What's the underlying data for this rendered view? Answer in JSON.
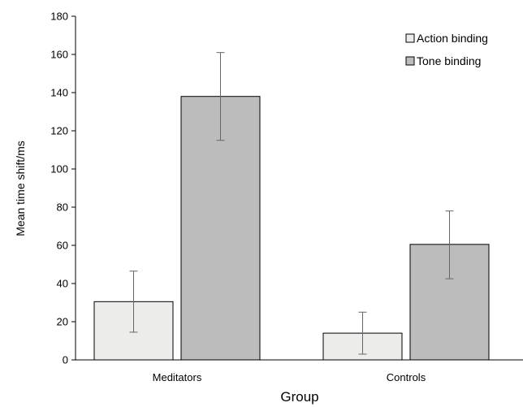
{
  "chart_data": {
    "type": "bar",
    "categories": [
      "Meditators",
      "Controls"
    ],
    "series": [
      {
        "name": "Action binding",
        "values": [
          30.5,
          14
        ],
        "error_low": [
          14.5,
          3
        ],
        "error_high": [
          46.5,
          25
        ],
        "color": "#ececea"
      },
      {
        "name": "Tone binding",
        "values": [
          138,
          60.5
        ],
        "error_low": [
          115,
          42.5
        ],
        "error_high": [
          161,
          78
        ],
        "color": "#bcbcbc"
      }
    ],
    "xlabel": "Group",
    "ylabel": "Mean time shift/ms",
    "ylim": [
      0,
      180
    ],
    "yticks": [
      0,
      20,
      40,
      60,
      80,
      100,
      120,
      140,
      160,
      180
    ],
    "grid": false,
    "legend_position": "top-right"
  }
}
